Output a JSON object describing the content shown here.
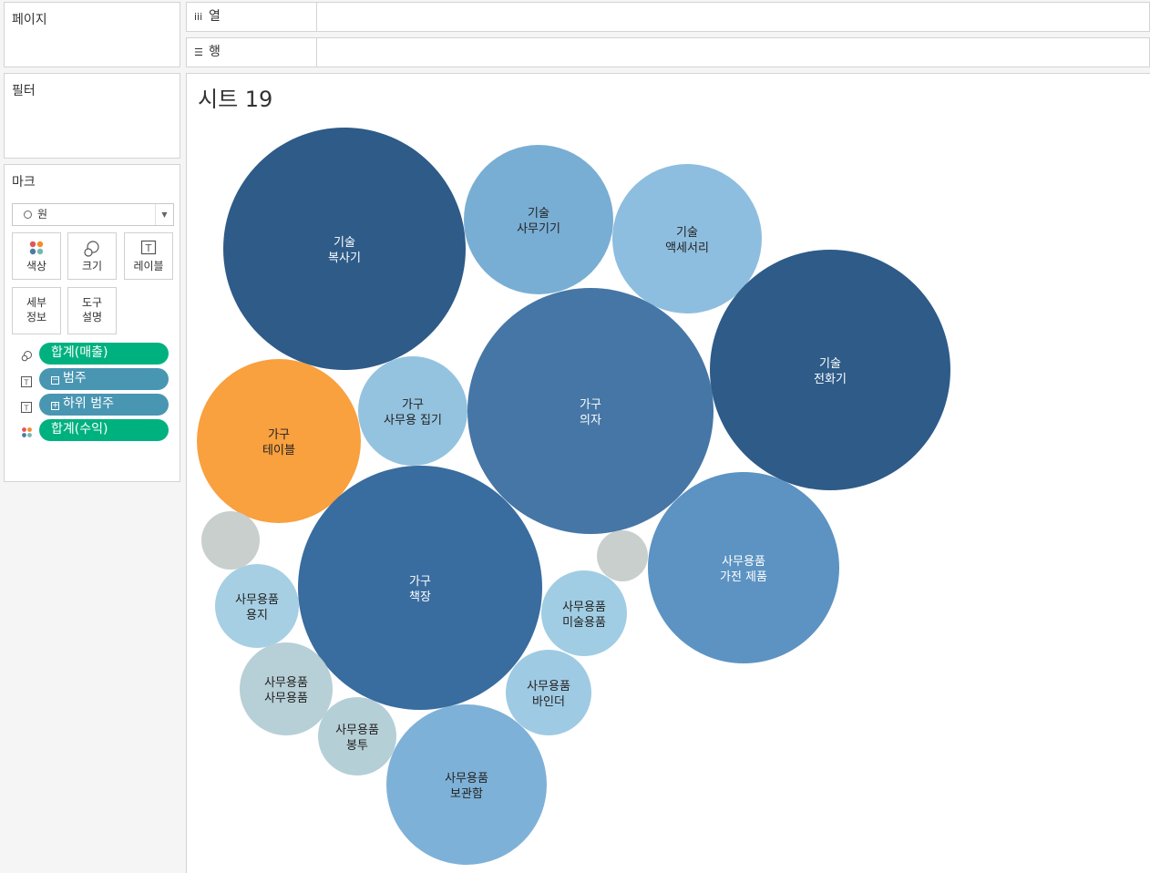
{
  "pages": {
    "title": "페이지"
  },
  "filters": {
    "title": "필터"
  },
  "shelves": {
    "columns": "열",
    "rows": "행"
  },
  "marks": {
    "title": "마크",
    "mark_type": "원",
    "buttons": {
      "color": "색상",
      "size": "크기",
      "label": "레이블",
      "detail_1": "세부",
      "detail_2": "정보",
      "tooltip_1": "도구",
      "tooltip_2": "설명"
    },
    "pills": [
      {
        "label": "합계(매출)",
        "kind": "size",
        "color": "#00b180"
      },
      {
        "label": "범주",
        "kind": "label",
        "color": "#4996b2"
      },
      {
        "label": "하위 범주",
        "kind": "label",
        "color": "#4996b2"
      },
      {
        "label": "합계(수익)",
        "kind": "color",
        "color": "#00b180"
      }
    ]
  },
  "sheet": {
    "title": "시트 19"
  },
  "chart_data": {
    "type": "bubble",
    "size_field": "합계(매출)",
    "color_field": "합계(수익)",
    "bubbles": [
      {
        "category": "기술",
        "subcategory": "복사기",
        "size": 100,
        "color": "#2e5b88",
        "text": "#fff"
      },
      {
        "category": "기술",
        "subcategory": "사무기기",
        "size": 38,
        "color": "#79aed4",
        "text": "#222"
      },
      {
        "category": "기술",
        "subcategory": "액세서리",
        "size": 37,
        "color": "#8ebedf",
        "text": "#222"
      },
      {
        "category": "기술",
        "subcategory": "전화기",
        "size": 97,
        "color": "#2e5b88",
        "text": "#fff"
      },
      {
        "category": "가구",
        "subcategory": "의자",
        "size": 102,
        "color": "#4576a6",
        "text": "#fff"
      },
      {
        "category": "가구",
        "subcategory": "테이블",
        "size": 45,
        "color": "#f9a03f",
        "text": "#222"
      },
      {
        "category": "가구",
        "subcategory": "사무용 집기",
        "size": 20,
        "color": "#94c3e0",
        "text": "#222"
      },
      {
        "category": "가구",
        "subcategory": "책장",
        "size": 101,
        "color": "#396c9f",
        "text": "#fff"
      },
      {
        "category": "사무용품",
        "subcategory": "가전 제품",
        "size": 62,
        "color": "#5c93c2",
        "text": "#fff"
      },
      {
        "category": "사무용품",
        "subcategory": "미술용품",
        "size": 12,
        "color": "#a0cde3",
        "text": "#222"
      },
      {
        "category": "사무용품",
        "subcategory": "용지",
        "size": 12,
        "color": "#a6cfe3",
        "text": "#222"
      },
      {
        "category": "사무용품",
        "subcategory": "사무용품",
        "size": 14,
        "color": "#b7cfd6",
        "text": "#222"
      },
      {
        "category": "사무용품",
        "subcategory": "봉투",
        "size": 10,
        "color": "#b5cfd6",
        "text": "#222"
      },
      {
        "category": "사무용품",
        "subcategory": "바인더",
        "size": 13,
        "color": "#9fcae3",
        "text": "#222"
      },
      {
        "category": "사무용품",
        "subcategory": "보관함",
        "size": 43,
        "color": "#7eb1d7",
        "text": "#222"
      },
      {
        "category": "",
        "subcategory": "",
        "size": 5,
        "color": "#c9cfcc",
        "text": "#222"
      },
      {
        "category": "",
        "subcategory": "",
        "size": 4,
        "color": "#c9cfcc",
        "text": "#222"
      }
    ]
  }
}
